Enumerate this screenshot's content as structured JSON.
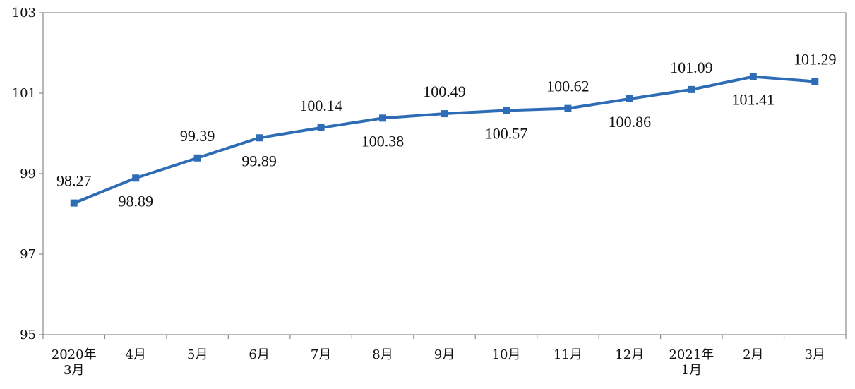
{
  "chart_data": {
    "type": "line",
    "title": "",
    "xlabel": "",
    "ylabel": "",
    "ylim": [
      95,
      103
    ],
    "yticks": [
      95,
      97,
      99,
      101,
      103
    ],
    "categories": [
      [
        "2020年",
        "3月"
      ],
      [
        "4月"
      ],
      [
        "5月"
      ],
      [
        "6月"
      ],
      [
        "7月"
      ],
      [
        "8月"
      ],
      [
        "9月"
      ],
      [
        "10月"
      ],
      [
        "11月"
      ],
      [
        "12月"
      ],
      [
        "2021年",
        "1月"
      ],
      [
        "2月"
      ],
      [
        "3月"
      ]
    ],
    "series": [
      {
        "values": [
          98.27,
          98.89,
          99.39,
          99.89,
          100.14,
          100.38,
          100.49,
          100.57,
          100.62,
          100.86,
          101.09,
          101.41,
          101.29
        ],
        "labels": [
          "98.27",
          "98.89",
          "99.39",
          "99.89",
          "100.14",
          "100.38",
          "100.49",
          "100.57",
          "100.62",
          "100.86",
          "101.09",
          "101.41",
          "101.29"
        ],
        "label_positions": [
          "above",
          "below",
          "above",
          "below",
          "above",
          "below",
          "above",
          "below",
          "above",
          "below",
          "above",
          "below",
          "above"
        ],
        "color": "#2e6db5"
      }
    ],
    "grid": false,
    "legend": "none"
  }
}
